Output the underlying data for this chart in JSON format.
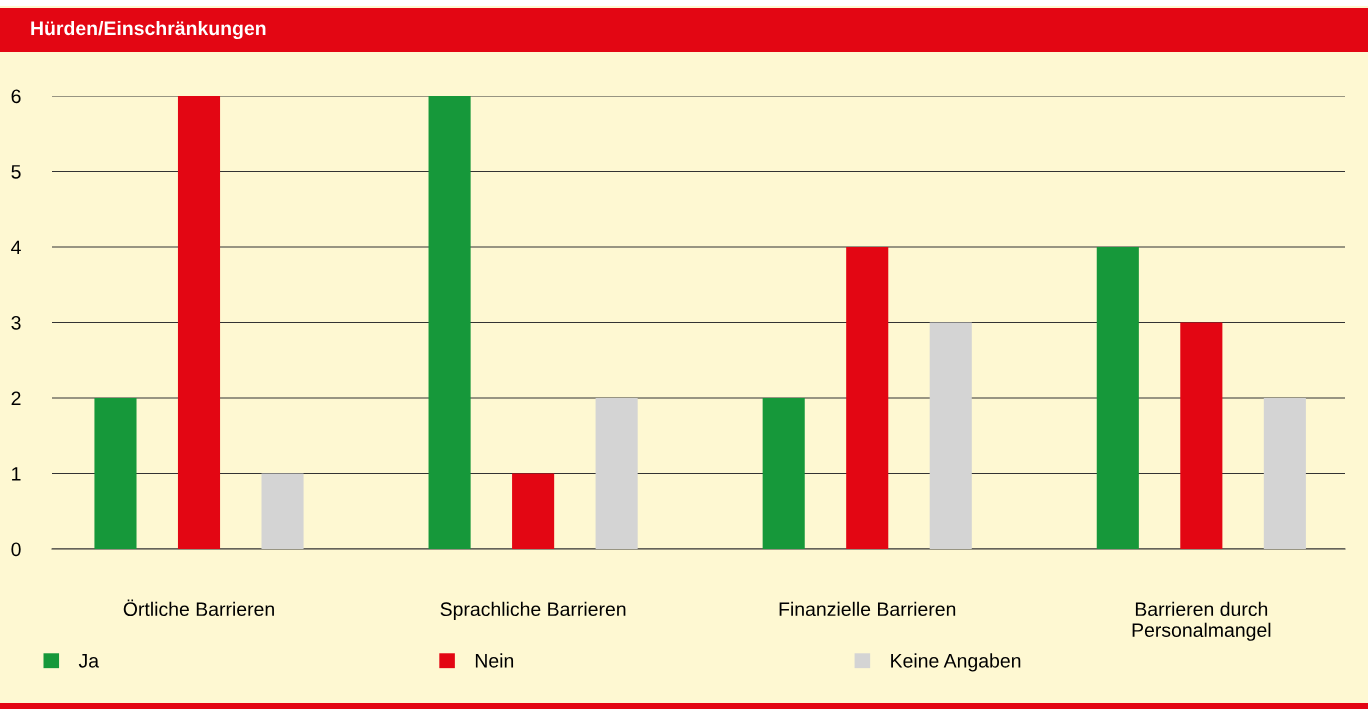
{
  "chart_data": {
    "type": "bar",
    "title": "Hürden/Einschränkungen",
    "categories": [
      "Örtliche Barrieren",
      "Sprachliche Barrieren",
      "Finanzielle Barrieren",
      "Barrieren durch\nPersonalmangel"
    ],
    "series": [
      {
        "name": "Ja",
        "color": "#16983a",
        "values": [
          2,
          6,
          2,
          4
        ]
      },
      {
        "name": "Nein",
        "color": "#e30613",
        "values": [
          6,
          1,
          4,
          3
        ]
      },
      {
        "name": "Keine Angaben",
        "color": "#d4d4d4",
        "values": [
          1,
          2,
          3,
          2
        ]
      }
    ],
    "ylim": [
      0,
      6
    ],
    "yticks": [
      0,
      1,
      2,
      3,
      4,
      5,
      6
    ],
    "grid": "y",
    "legend": "bottom"
  }
}
